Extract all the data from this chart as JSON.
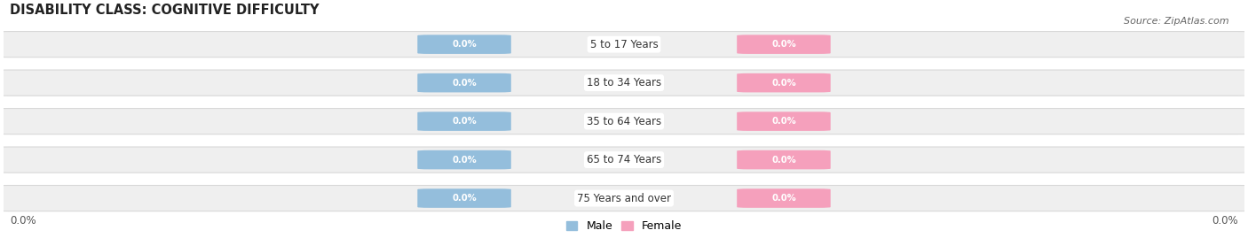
{
  "title": "DISABILITY CLASS: COGNITIVE DIFFICULTY",
  "source": "Source: ZipAtlas.com",
  "categories": [
    "5 to 17 Years",
    "18 to 34 Years",
    "35 to 64 Years",
    "65 to 74 Years",
    "75 Years and over"
  ],
  "male_values": [
    0.0,
    0.0,
    0.0,
    0.0,
    0.0
  ],
  "female_values": [
    0.0,
    0.0,
    0.0,
    0.0,
    0.0
  ],
  "male_color": "#94bedc",
  "female_color": "#f5a0bc",
  "bar_bg_color": "#efefef",
  "bar_outline_color": "#d8d8d8",
  "male_label": "Male",
  "female_label": "Female",
  "x_left_label": "0.0%",
  "x_right_label": "0.0%",
  "title_fontsize": 10.5,
  "label_fontsize": 9,
  "bg_color": "#ffffff",
  "max_val": 1.0,
  "pill_label": "0.0%"
}
